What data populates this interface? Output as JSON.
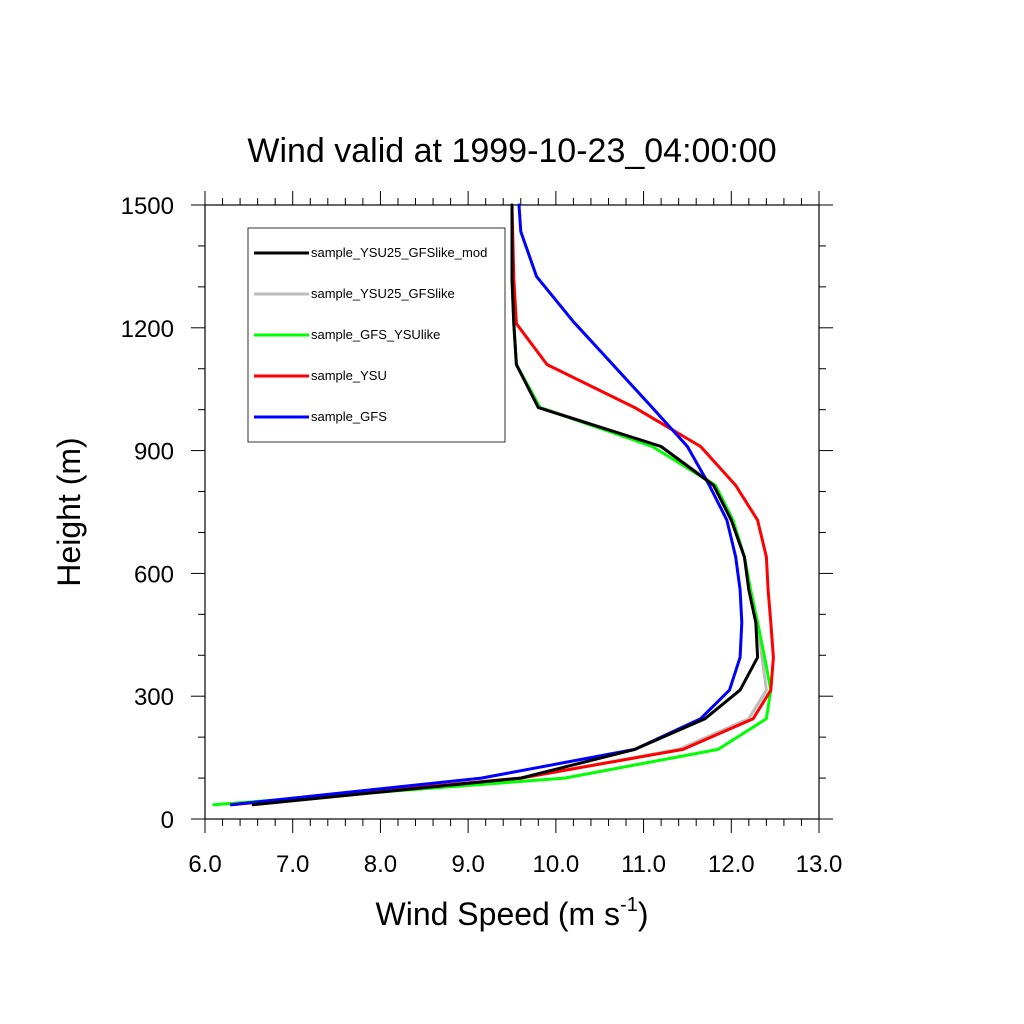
{
  "chart_data": {
    "type": "line",
    "title": "Wind valid at 1999-10-23_04:00:00",
    "xlabel": "Wind Speed",
    "xlabel_units": "(m s",
    "xlabel_sup": "-1",
    "xlabel_close": ")",
    "ylabel": "Height (m)",
    "xlim": [
      6.0,
      13.0
    ],
    "ylim": [
      0,
      1500
    ],
    "x_ticks": [
      "6.0",
      "7.0",
      "8.0",
      "9.0",
      "10.0",
      "11.0",
      "12.0",
      "13.0"
    ],
    "y_ticks": [
      "0",
      "300",
      "600",
      "900",
      "1200",
      "1500"
    ],
    "grid": false,
    "legend_placement": "top-left",
    "series": [
      {
        "name": "sample_YSU25_GFSlike_mod",
        "color": "#000000",
        "points": [
          [
            6.55,
            35
          ],
          [
            9.6,
            100
          ],
          [
            10.9,
            170
          ],
          [
            11.7,
            245
          ],
          [
            12.1,
            315
          ],
          [
            12.3,
            395
          ],
          [
            12.28,
            480
          ],
          [
            12.2,
            560
          ],
          [
            12.15,
            640
          ],
          [
            12.0,
            730
          ],
          [
            11.8,
            815
          ],
          [
            11.2,
            910
          ],
          [
            9.8,
            1005
          ],
          [
            9.55,
            1110
          ],
          [
            9.52,
            1210
          ],
          [
            9.5,
            1320
          ],
          [
            9.5,
            1500
          ]
        ]
      },
      {
        "name": "sample_YSU25_GFSlike",
        "color": "#bdbdbd",
        "points": [
          [
            6.3,
            35
          ],
          [
            9.6,
            100
          ],
          [
            11.4,
            170
          ],
          [
            12.2,
            245
          ],
          [
            12.4,
            315
          ],
          [
            12.35,
            395
          ],
          [
            12.3,
            480
          ],
          [
            12.22,
            560
          ],
          [
            12.15,
            640
          ],
          [
            12.02,
            730
          ],
          [
            11.82,
            815
          ],
          [
            11.2,
            910
          ],
          [
            9.82,
            1005
          ],
          [
            9.55,
            1110
          ],
          [
            9.52,
            1210
          ],
          [
            9.5,
            1320
          ],
          [
            9.5,
            1500
          ]
        ]
      },
      {
        "name": "sample_GFS_YSUlike",
        "color": "#00ff00",
        "points": [
          [
            6.1,
            35
          ],
          [
            10.1,
            100
          ],
          [
            11.85,
            170
          ],
          [
            12.4,
            245
          ],
          [
            12.45,
            315
          ],
          [
            12.38,
            395
          ],
          [
            12.3,
            480
          ],
          [
            12.22,
            560
          ],
          [
            12.15,
            640
          ],
          [
            12.02,
            730
          ],
          [
            11.82,
            815
          ],
          [
            11.1,
            910
          ],
          [
            9.82,
            1005
          ],
          [
            9.55,
            1110
          ],
          [
            9.52,
            1210
          ],
          [
            9.5,
            1320
          ],
          [
            9.5,
            1500
          ]
        ]
      },
      {
        "name": "sample_YSU",
        "color": "#ff0000",
        "points": [
          [
            6.3,
            35
          ],
          [
            9.6,
            100
          ],
          [
            11.45,
            170
          ],
          [
            12.25,
            245
          ],
          [
            12.45,
            315
          ],
          [
            12.48,
            395
          ],
          [
            12.45,
            480
          ],
          [
            12.42,
            560
          ],
          [
            12.4,
            640
          ],
          [
            12.3,
            730
          ],
          [
            12.05,
            815
          ],
          [
            11.65,
            910
          ],
          [
            10.9,
            1005
          ],
          [
            9.9,
            1110
          ],
          [
            9.55,
            1210
          ],
          [
            9.52,
            1320
          ],
          [
            9.5,
            1500
          ]
        ]
      },
      {
        "name": "sample_GFS",
        "color": "#0000ff",
        "points": [
          [
            6.3,
            35
          ],
          [
            9.15,
            100
          ],
          [
            10.9,
            170
          ],
          [
            11.65,
            245
          ],
          [
            11.98,
            315
          ],
          [
            12.1,
            395
          ],
          [
            12.12,
            480
          ],
          [
            12.1,
            560
          ],
          [
            12.05,
            640
          ],
          [
            11.95,
            730
          ],
          [
            11.75,
            815
          ],
          [
            11.5,
            910
          ],
          [
            11.1,
            1005
          ],
          [
            10.2,
            1215
          ],
          [
            9.78,
            1325
          ],
          [
            9.6,
            1435
          ],
          [
            9.58,
            1500
          ]
        ]
      }
    ]
  }
}
